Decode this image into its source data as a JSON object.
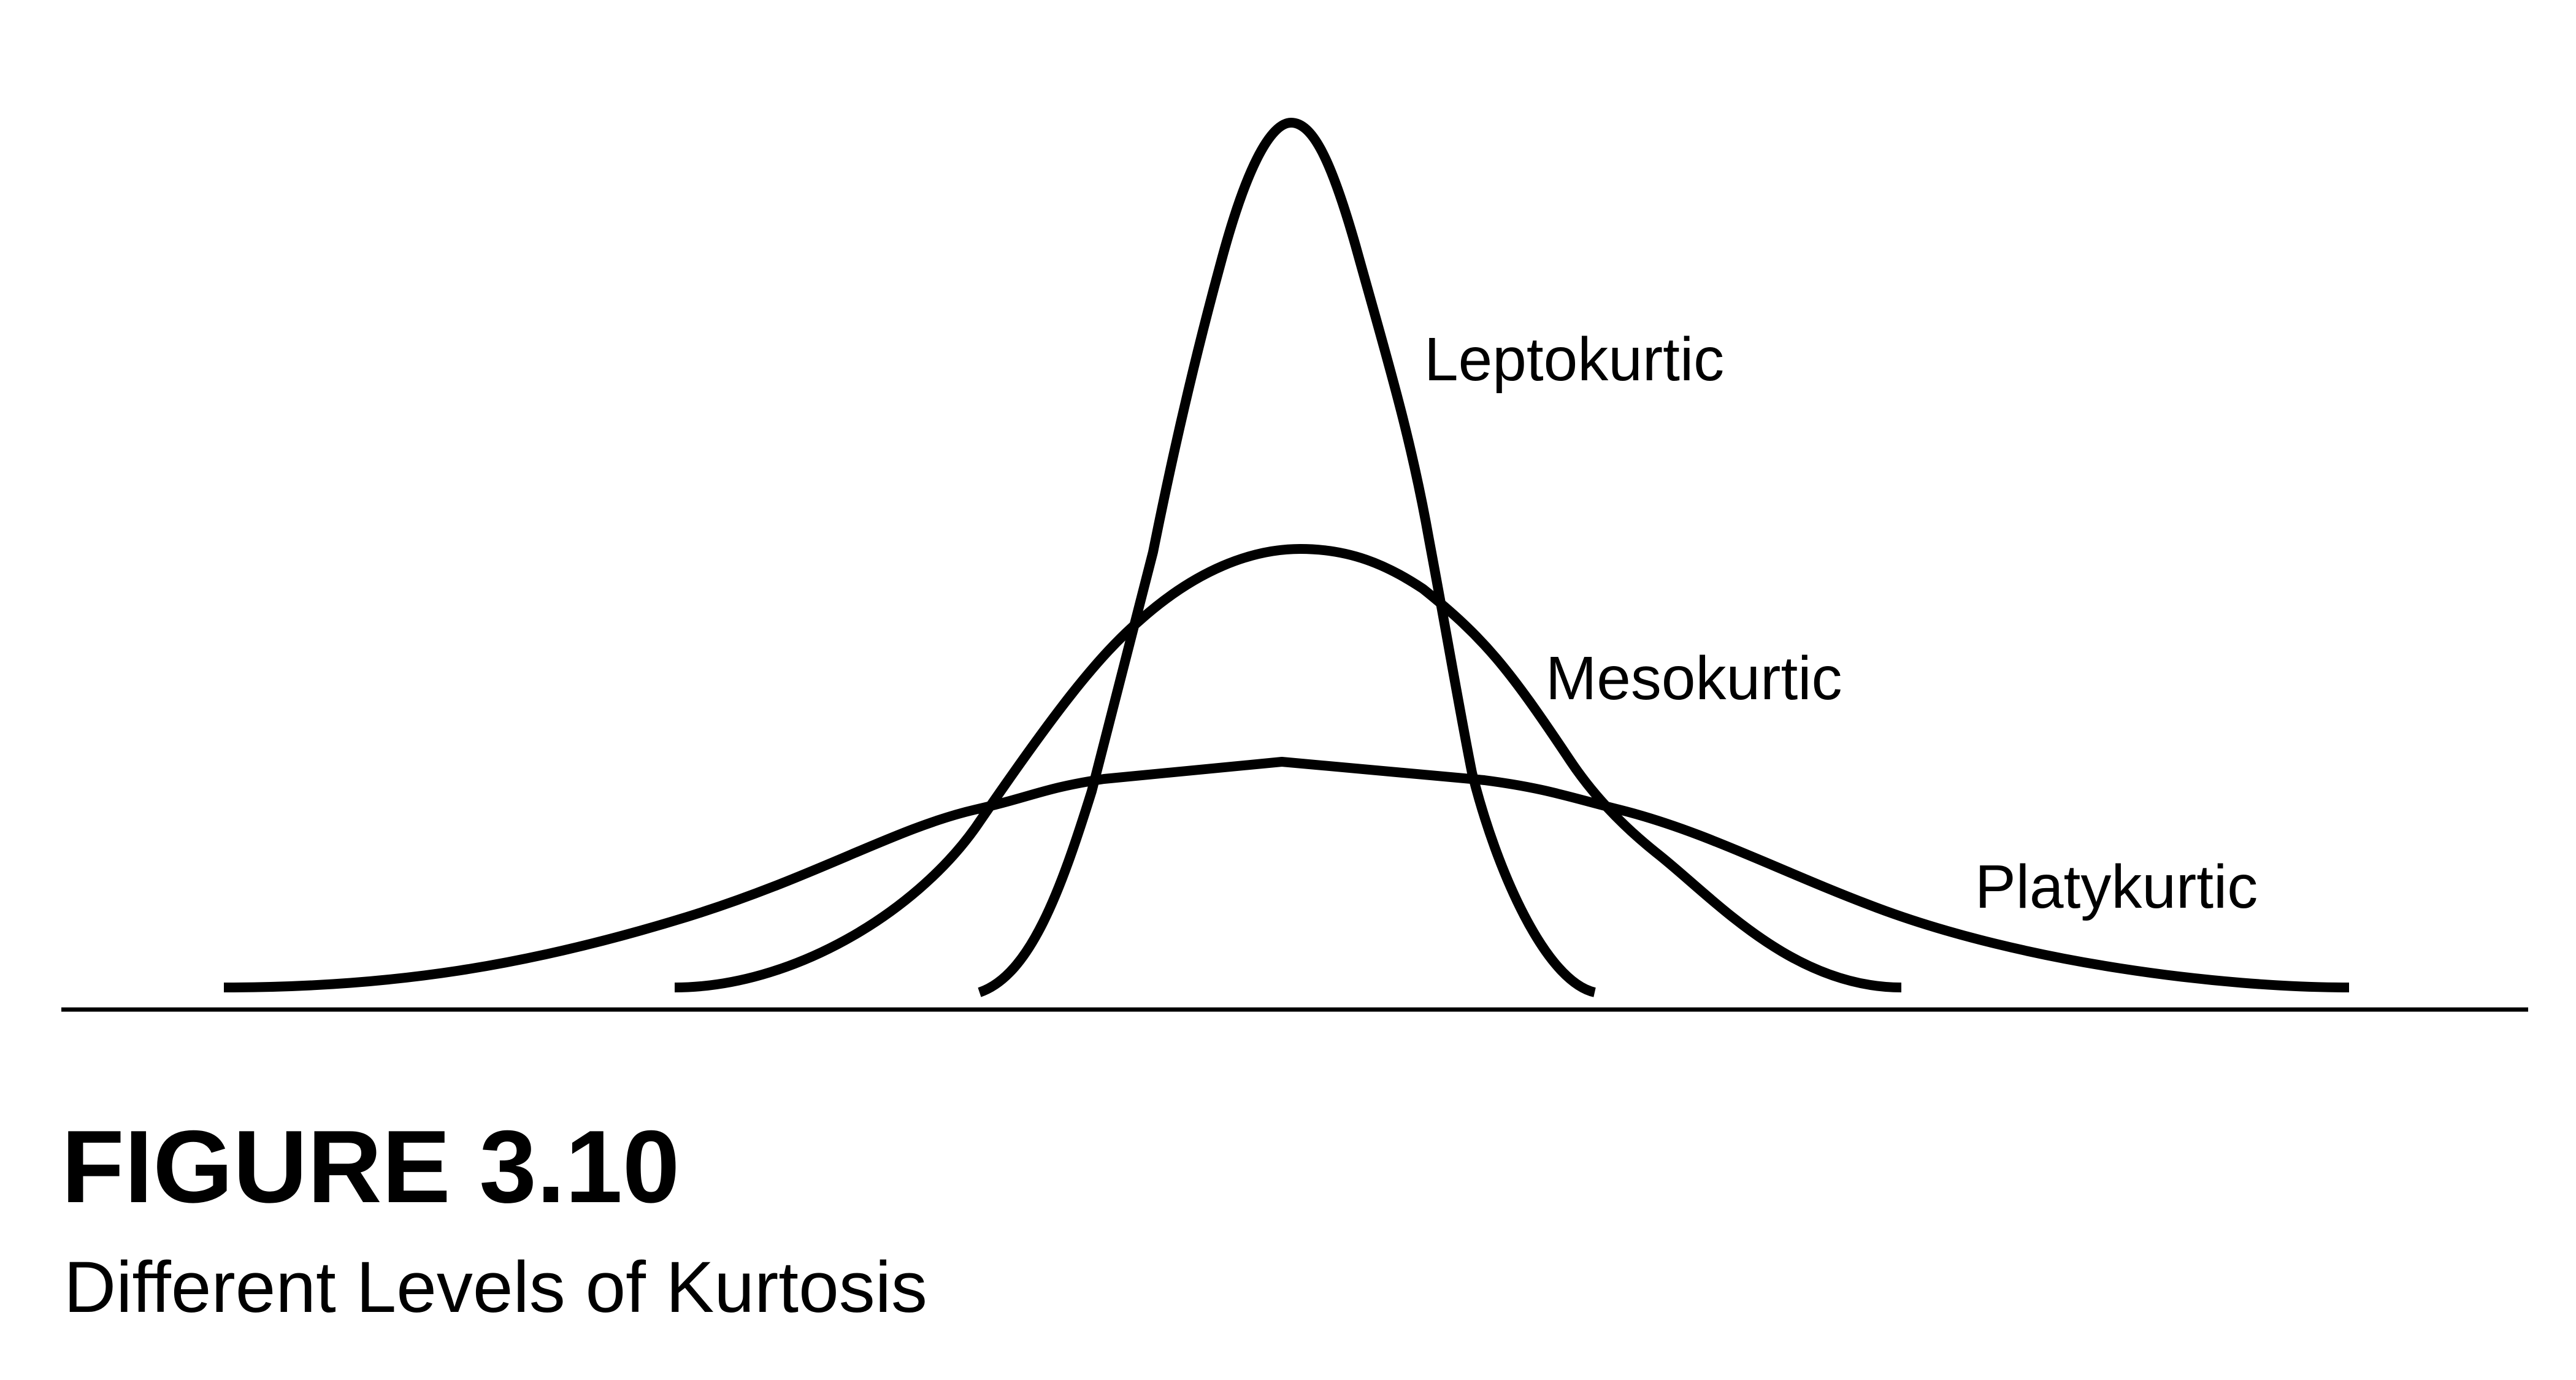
{
  "figure": {
    "number": "FIGURE 3.10",
    "caption": "Different Levels of Kurtosis"
  },
  "curves": [
    {
      "id": "leptokurtic",
      "label": "Leptokurtic",
      "peak": "tallest, narrowest"
    },
    {
      "id": "mesokurtic",
      "label": "Mesokurtic",
      "peak": "medium"
    },
    {
      "id": "platykurtic",
      "label": "Platykurtic",
      "peak": "flattest, widest"
    }
  ],
  "colors": {
    "stroke": "#000000",
    "background": "#ffffff"
  }
}
